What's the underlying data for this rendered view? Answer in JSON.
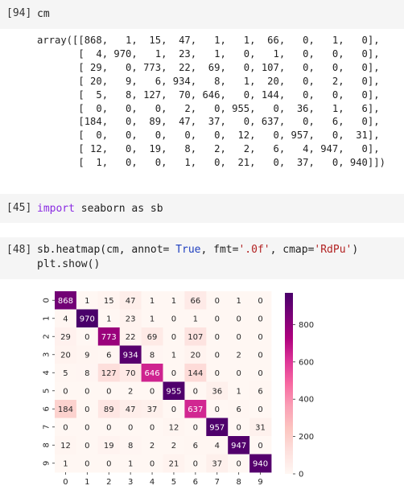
{
  "cells": [
    {
      "prompt": "[94]",
      "code": "cm"
    },
    {
      "prompt": "[45]",
      "kw": "import",
      "rest": " seaborn as sb"
    },
    {
      "prompt": "[48]",
      "line1_a": "sb.heatmap(cm, annot= ",
      "true_kw": "True",
      "line1_b": ", fmt=",
      "fmt_str": "'.0f'",
      "line1_c": ", cmap=",
      "cmap_str": "'RdPu'",
      "line1_d": ")",
      "line2": "plt.show()"
    }
  ],
  "array_output": [
    "array([[868,   1,  15,  47,   1,   1,  66,   0,   1,   0],",
    "       [  4, 970,   1,  23,   1,   0,   1,   0,   0,   0],",
    "       [ 29,   0, 773,  22,  69,   0, 107,   0,   0,   0],",
    "       [ 20,   9,   6, 934,   8,   1,  20,   0,   2,   0],",
    "       [  5,   8, 127,  70, 646,   0, 144,   0,   0,   0],",
    "       [  0,   0,   0,   2,   0, 955,   0,  36,   1,   6],",
    "       [184,   0,  89,  47,  37,   0, 637,   0,   6,   0],",
    "       [  0,   0,   0,   0,   0,  12,   0, 957,   0,  31],",
    "       [ 12,   0,  19,   8,   2,   2,   6,   4, 947,   0],",
    "       [  1,   0,   0,   1,   0,  21,   0,  37,   0, 940]])"
  ],
  "chart_data": {
    "type": "heatmap",
    "x_ticks": [
      "0",
      "1",
      "2",
      "3",
      "4",
      "5",
      "6",
      "7",
      "8",
      "9"
    ],
    "y_ticks": [
      "0",
      "1",
      "2",
      "3",
      "4",
      "5",
      "6",
      "7",
      "8",
      "9"
    ],
    "matrix": [
      [
        868,
        1,
        15,
        47,
        1,
        1,
        66,
        0,
        1,
        0
      ],
      [
        4,
        970,
        1,
        23,
        1,
        0,
        1,
        0,
        0,
        0
      ],
      [
        29,
        0,
        773,
        22,
        69,
        0,
        107,
        0,
        0,
        0
      ],
      [
        20,
        9,
        6,
        934,
        8,
        1,
        20,
        0,
        2,
        0
      ],
      [
        5,
        8,
        127,
        70,
        646,
        0,
        144,
        0,
        0,
        0
      ],
      [
        0,
        0,
        0,
        2,
        0,
        955,
        0,
        36,
        1,
        6
      ],
      [
        184,
        0,
        89,
        47,
        37,
        0,
        637,
        0,
        6,
        0
      ],
      [
        0,
        0,
        0,
        0,
        0,
        12,
        0,
        957,
        0,
        31
      ],
      [
        12,
        0,
        19,
        8,
        2,
        2,
        6,
        4,
        947,
        0
      ],
      [
        1,
        0,
        0,
        1,
        0,
        21,
        0,
        37,
        0,
        940
      ]
    ],
    "vmin": 0,
    "vmax": 970,
    "colorbar_ticks": [
      0,
      200,
      400,
      600,
      800
    ],
    "colormap": "RdPu",
    "color_stops": [
      "#fff7f3",
      "#fde0dd",
      "#fcc5c0",
      "#fa9fb5",
      "#f768a1",
      "#dd3497",
      "#ae017e",
      "#7a0177",
      "#49006a"
    ]
  }
}
